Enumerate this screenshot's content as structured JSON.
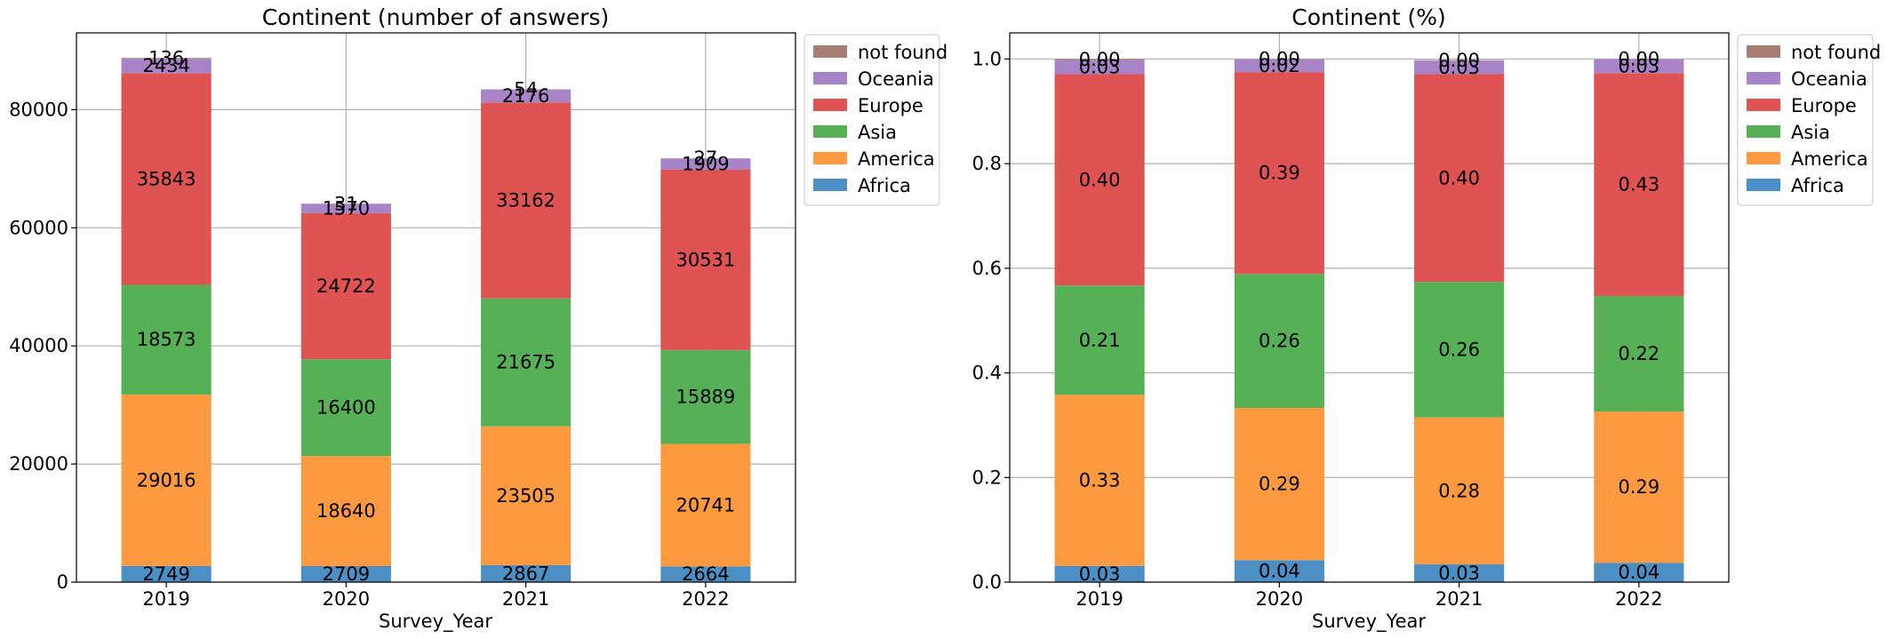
{
  "chart_data": [
    {
      "type": "bar",
      "stacked": true,
      "title": "Continent (number of answers)",
      "xlabel": "Survey_Year",
      "ylabel": "",
      "ylim": [
        0,
        93000
      ],
      "yticks": [
        0,
        20000,
        40000,
        60000,
        80000
      ],
      "grid": true,
      "legend_position": "outside right, top",
      "categories": [
        "2019",
        "2020",
        "2021",
        "2022"
      ],
      "series": [
        {
          "name": "Africa",
          "color": "#4c8fc4",
          "values": [
            2749,
            2709,
            2867,
            2664
          ],
          "labels": [
            "2749",
            "2709",
            "2867",
            "2664"
          ]
        },
        {
          "name": "America",
          "color": "#fd993f",
          "values": [
            29016,
            18640,
            23505,
            20741
          ],
          "labels": [
            "29016",
            "18640",
            "23505",
            "20741"
          ]
        },
        {
          "name": "Asia",
          "color": "#56b156",
          "values": [
            18573,
            16400,
            21675,
            15889
          ],
          "labels": [
            "18573",
            "16400",
            "21675",
            "15889"
          ]
        },
        {
          "name": "Europe",
          "color": "#df5353",
          "values": [
            35843,
            24722,
            33162,
            30531
          ],
          "labels": [
            "35843",
            "24722",
            "33162",
            "30531"
          ]
        },
        {
          "name": "Oceania",
          "color": "#a983c7",
          "values": [
            2434,
            1570,
            2176,
            1909
          ],
          "labels": [
            "2434",
            "1570",
            "2176",
            "1909"
          ]
        },
        {
          "name": "not found",
          "color": "#a77e73",
          "values": [
            136,
            31,
            54,
            27
          ],
          "labels": [
            "136",
            "31",
            "54",
            "27"
          ]
        }
      ],
      "legend_order": [
        "not found",
        "Oceania",
        "Europe",
        "Asia",
        "America",
        "Africa"
      ]
    },
    {
      "type": "bar",
      "stacked": true,
      "title": "Continent (%)",
      "xlabel": "Survey_Year",
      "ylabel": "",
      "ylim": [
        0,
        1.05
      ],
      "yticks": [
        "0.0",
        "0.2",
        "0.4",
        "0.6",
        "0.8",
        "1.0"
      ],
      "grid": true,
      "legend_position": "outside right, top",
      "categories": [
        "2019",
        "2020",
        "2021",
        "2022"
      ],
      "series": [
        {
          "name": "Africa",
          "color": "#4c8fc4",
          "values": [
            0.031,
            0.042,
            0.034,
            0.037
          ],
          "labels": [
            "0.03",
            "0.04",
            "0.03",
            "0.04"
          ]
        },
        {
          "name": "America",
          "color": "#fd993f",
          "values": [
            0.327,
            0.291,
            0.281,
            0.289
          ],
          "labels": [
            "0.33",
            "0.29",
            "0.28",
            "0.29"
          ]
        },
        {
          "name": "Asia",
          "color": "#56b156",
          "values": [
            0.209,
            0.256,
            0.259,
            0.221
          ],
          "labels": [
            "0.21",
            "0.26",
            "0.26",
            "0.22"
          ]
        },
        {
          "name": "Europe",
          "color": "#df5353",
          "values": [
            0.404,
            0.386,
            0.397,
            0.426
          ],
          "labels": [
            "0.40",
            "0.39",
            "0.40",
            "0.43"
          ]
        },
        {
          "name": "Oceania",
          "color": "#a983c7",
          "values": [
            0.027,
            0.025,
            0.026,
            0.027
          ],
          "labels": [
            "0.03",
            "0.02",
            "0.03",
            "0.03"
          ]
        },
        {
          "name": "not found",
          "color": "#a77e73",
          "values": [
            0.002,
            0.0,
            0.001,
            0.0
          ],
          "labels": [
            "0.00",
            "0.00",
            "0.00",
            "0.00"
          ]
        }
      ],
      "legend_order": [
        "not found",
        "Oceania",
        "Europe",
        "Asia",
        "America",
        "Africa"
      ]
    }
  ]
}
